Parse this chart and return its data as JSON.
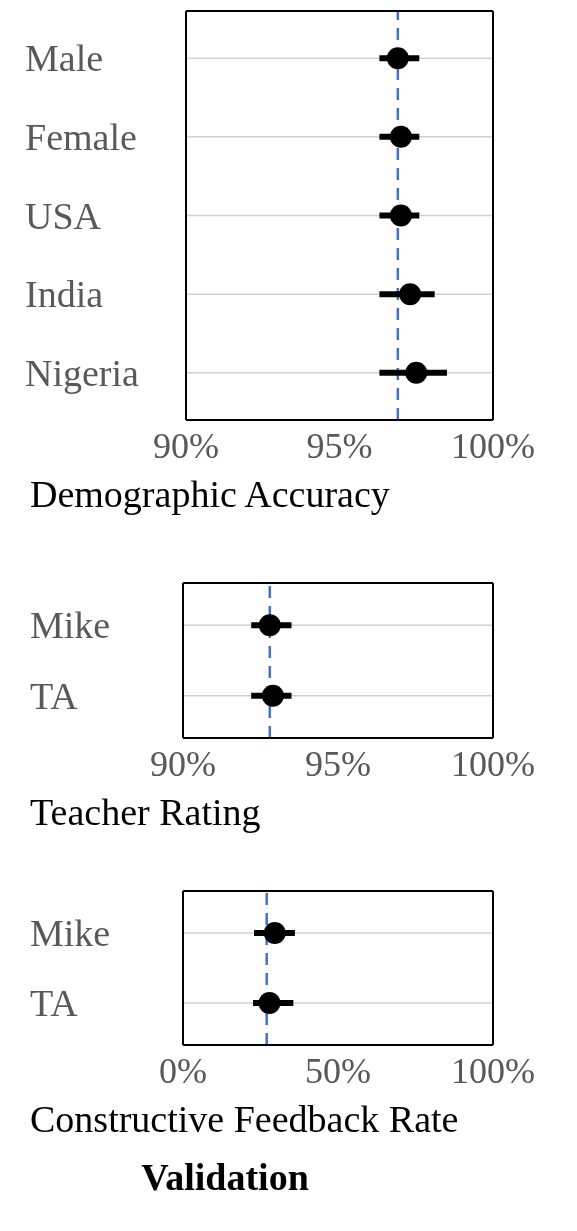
{
  "chart_data": [
    {
      "type": "scatter",
      "orientation": "horizontal",
      "xlabel": "Demographic Accuracy",
      "categories": [
        "Male",
        "Female",
        "USA",
        "India",
        "Nigeria"
      ],
      "values": [
        96.9,
        97.0,
        97.0,
        97.3,
        97.5
      ],
      "errors": [
        [
          96.3,
          97.6
        ],
        [
          96.3,
          97.6
        ],
        [
          96.3,
          97.6
        ],
        [
          96.3,
          98.1
        ],
        [
          96.3,
          98.5
        ]
      ],
      "color": "#000000",
      "marker": "circle",
      "xlim": [
        90,
        100
      ],
      "xticks": [
        {
          "value": 90,
          "label": "90%"
        },
        {
          "value": 95,
          "label": "95%"
        },
        {
          "value": 100,
          "label": "100%"
        }
      ],
      "grid": "y",
      "ref_lines": [
        {
          "axis": "x",
          "value": 96.9,
          "color": "#4472c4",
          "line_style": "dashed"
        }
      ]
    },
    {
      "type": "scatter",
      "orientation": "horizontal",
      "xlabel": "Teacher Rating",
      "categories": [
        "Mike",
        "TA"
      ],
      "values": [
        92.8,
        92.9
      ],
      "errors": [
        [
          92.2,
          93.5
        ],
        [
          92.2,
          93.5
        ]
      ],
      "color": "#000000",
      "marker": "circle",
      "xlim": [
        90,
        100
      ],
      "xticks": [
        {
          "value": 90,
          "label": "90%"
        },
        {
          "value": 95,
          "label": "95%"
        },
        {
          "value": 100,
          "label": "100%"
        }
      ],
      "grid": "y",
      "ref_lines": [
        {
          "axis": "x",
          "value": 92.8,
          "color": "#4472c4",
          "line_style": "dashed"
        }
      ]
    },
    {
      "type": "scatter",
      "orientation": "horizontal",
      "xlabel": "Constructive Feedback Rate",
      "categories": [
        "Mike",
        "TA"
      ],
      "values": [
        29.6,
        27.9
      ],
      "errors": [
        [
          22.9,
          36.1
        ],
        [
          22.6,
          35.6
        ]
      ],
      "color": "#000000",
      "marker": "circle",
      "xlim": [
        0,
        100
      ],
      "xticks": [
        {
          "value": 0,
          "label": "0%"
        },
        {
          "value": 50,
          "label": "50%"
        },
        {
          "value": 100,
          "label": "100%"
        }
      ],
      "grid": "y",
      "ref_lines": [
        {
          "axis": "x",
          "value": 27.0,
          "color": "#4472c4",
          "line_style": "dashed"
        }
      ],
      "annotations": [
        "Validation"
      ]
    }
  ]
}
